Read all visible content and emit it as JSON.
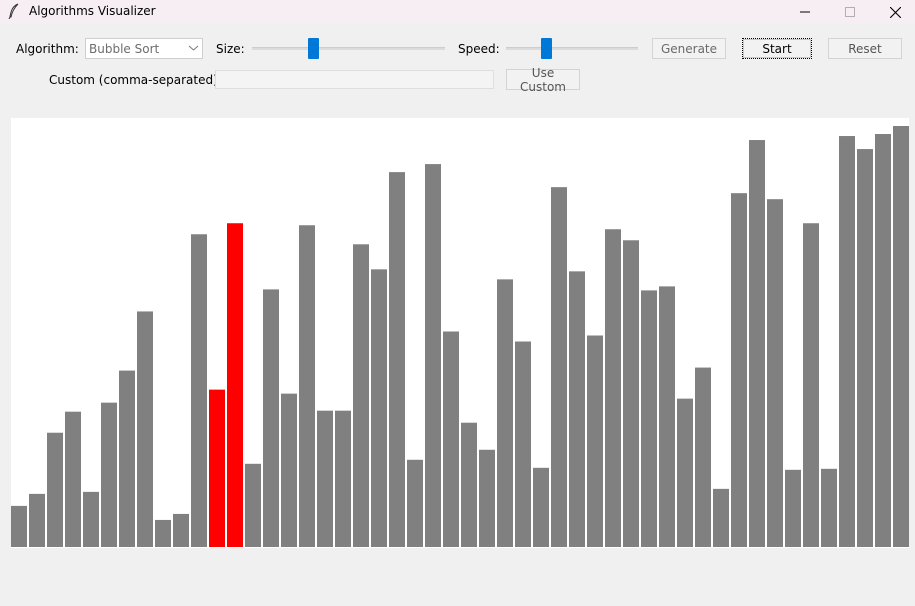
{
  "window": {
    "title": "Algorithms Visualizer",
    "icon": "feather-icon"
  },
  "controls": {
    "algorithm_label": "Algorithm:",
    "algorithm_selected": "Bubble Sort",
    "size_label": "Size:",
    "size_value": 0.29,
    "speed_label": "Speed:",
    "speed_value": 0.31,
    "generate_label": "Generate",
    "start_label": "Start",
    "reset_label": "Reset",
    "custom_label": "Custom (comma-separated):",
    "custom_value": "",
    "use_custom_label": "Use Custom"
  },
  "colors": {
    "bar_default": "#808080",
    "bar_highlight": "#ff0000",
    "slider_thumb": "#0078d7"
  },
  "chart_data": {
    "type": "bar",
    "max_value": 420,
    "values": [
      41,
      53,
      114,
      135,
      55,
      144,
      176,
      235,
      27,
      33,
      312,
      157,
      323,
      83,
      257,
      153,
      321,
      136,
      136,
      302,
      277,
      374,
      87,
      382,
      215,
      124,
      97,
      267,
      205,
      79,
      359,
      275,
      211,
      317,
      306,
      256,
      260,
      148,
      179,
      58,
      353,
      406,
      347,
      77,
      323,
      78,
      410,
      397,
      412,
      420
    ],
    "highlighted": [
      11,
      12
    ]
  }
}
